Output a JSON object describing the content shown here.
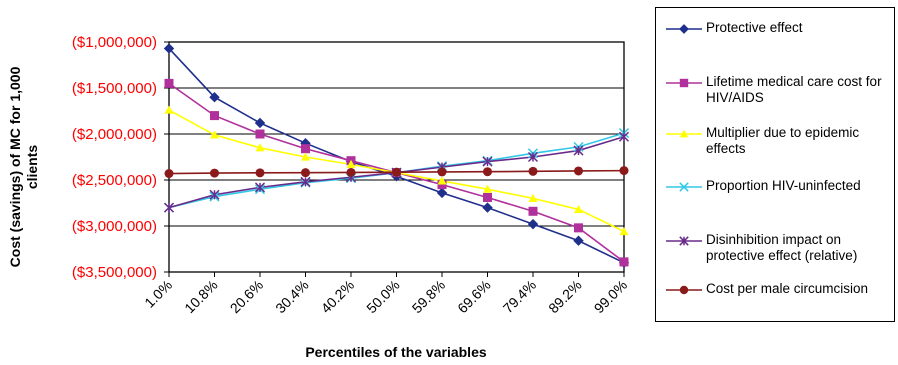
{
  "chart_data": {
    "type": "line",
    "xlabel": "Percentiles of the variables",
    "ylabel": "Cost (savings) of MC for 1,000 clients",
    "categories": [
      "1.0%",
      "10.8%",
      "20.6%",
      "30.4%",
      "40.2%",
      "50.0%",
      "59.8%",
      "69.6%",
      "79.4%",
      "89.2%",
      "99.0%"
    ],
    "yticks": [
      "($1,000,000)",
      "($1,500,000)",
      "($2,000,000)",
      "($2,500,000)",
      "($3,000,000)",
      "($3,500,000)"
    ],
    "ylim": [
      -3500000,
      -1000000
    ],
    "y_tick_color": "#FF0000",
    "grid": "horizontal",
    "legend_position": "right",
    "series": [
      {
        "name": "Protective effect",
        "color": "#1F2F8C",
        "marker": "diamond",
        "values": [
          -1070000,
          -1600000,
          -1880000,
          -2100000,
          -2300000,
          -2460000,
          -2640000,
          -2800000,
          -2980000,
          -3160000,
          -3400000
        ]
      },
      {
        "name": "Lifetime medical care cost for HIV/AIDS",
        "color": "#B0309C",
        "marker": "square",
        "values": [
          -1450000,
          -1800000,
          -2000000,
          -2160000,
          -2290000,
          -2420000,
          -2550000,
          -2690000,
          -2840000,
          -3020000,
          -3390000
        ]
      },
      {
        "name": "Multiplier due to epidemic effects",
        "color": "#FFFF00",
        "marker": "triangle",
        "values": [
          -1740000,
          -2010000,
          -2150000,
          -2250000,
          -2330000,
          -2420000,
          -2510000,
          -2600000,
          -2700000,
          -2820000,
          -3060000
        ]
      },
      {
        "name": "Proportion HIV-uninfected",
        "color": "#33C8E8",
        "marker": "x",
        "values": [
          -2800000,
          -2680000,
          -2600000,
          -2530000,
          -2480000,
          -2420000,
          -2350000,
          -2290000,
          -2210000,
          -2140000,
          -1990000
        ]
      },
      {
        "name": "Disinhibition impact on protective effect (relative)",
        "color": "#6A2A8A",
        "marker": "star",
        "values": [
          -2800000,
          -2660000,
          -2580000,
          -2520000,
          -2470000,
          -2420000,
          -2360000,
          -2300000,
          -2250000,
          -2180000,
          -2030000
        ]
      },
      {
        "name": "Cost per male circumcision",
        "color": "#8B1A1A",
        "marker": "circle",
        "values": [
          -2430000,
          -2425000,
          -2422000,
          -2420000,
          -2418000,
          -2415000,
          -2412000,
          -2410000,
          -2406000,
          -2402000,
          -2398000
        ]
      }
    ]
  }
}
